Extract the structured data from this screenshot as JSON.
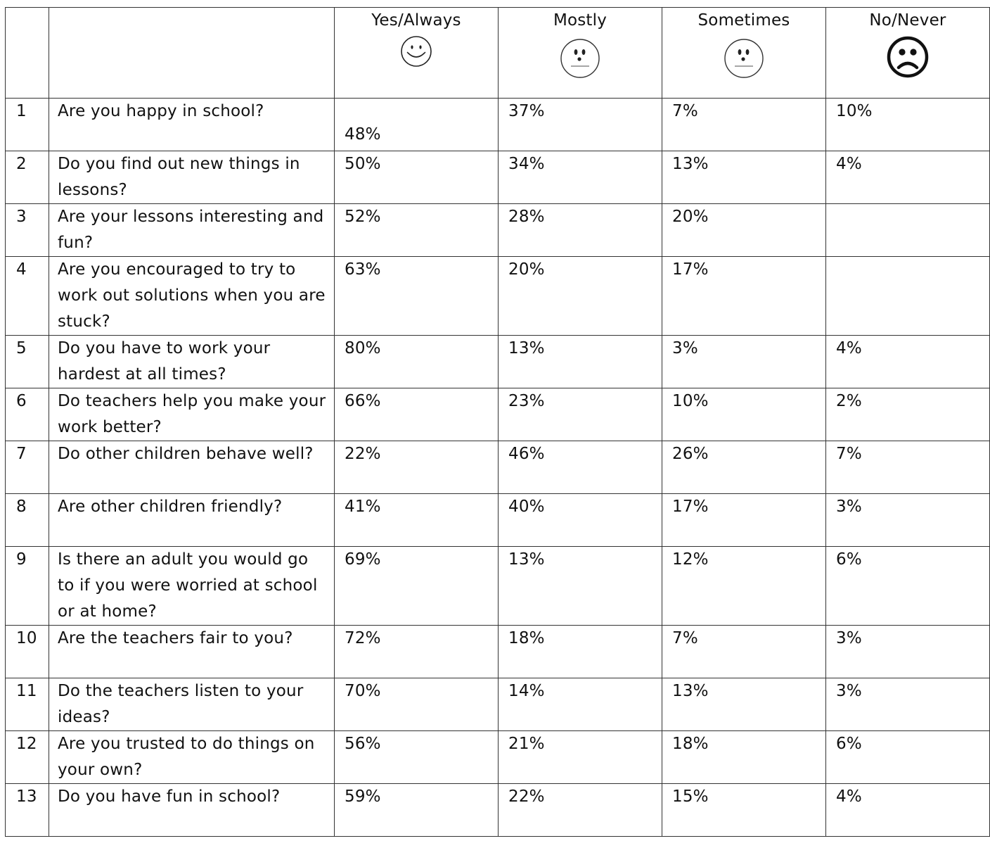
{
  "columns": {
    "yes_always": {
      "label": "Yes/Always",
      "icon": "smiley-face-icon"
    },
    "mostly": {
      "label": "Mostly",
      "icon": "neutral-face-icon"
    },
    "sometimes": {
      "label": "Sometimes",
      "icon": "neutral-face-icon"
    },
    "no_never": {
      "label": "No/Never",
      "icon": "sad-face-icon"
    }
  },
  "rows": [
    {
      "num": "1",
      "question": "Are you happy in school?",
      "yes": "48%",
      "mostly": "37%",
      "sometimes": "7%",
      "never": "10%"
    },
    {
      "num": "2",
      "question": "Do you find out new things in lessons?",
      "yes": "50%",
      "mostly": "34%",
      "sometimes": "13%",
      "never": "4%"
    },
    {
      "num": "3",
      "question": "Are your lessons interesting and fun?",
      "yes": "52%",
      "mostly": "28%",
      "sometimes": "20%",
      "never": ""
    },
    {
      "num": "4",
      "question": "Are you encouraged to try to work out solutions when you are stuck?",
      "yes": "63%",
      "mostly": "20%",
      "sometimes": "17%",
      "never": ""
    },
    {
      "num": "5",
      "question": "Do you have to work your hardest at all times?",
      "yes": "80%",
      "mostly": "13%",
      "sometimes": "3%",
      "never": "4%"
    },
    {
      "num": "6",
      "question": "Do teachers help you make your work better?",
      "yes": "66%",
      "mostly": "23%",
      "sometimes": "10%",
      "never": "2%"
    },
    {
      "num": "7",
      "question": "Do other children behave well?",
      "yes": "22%",
      "mostly": "46%",
      "sometimes": "26%",
      "never": "7%"
    },
    {
      "num": "8",
      "question": "Are other children friendly?",
      "yes": "41%",
      "mostly": "40%",
      "sometimes": "17%",
      "never": "3%"
    },
    {
      "num": "9",
      "question": "Is there an adult you would go to if you were worried at school or at home?",
      "yes": "69%",
      "mostly": "13%",
      "sometimes": "12%",
      "never": "6%"
    },
    {
      "num": "10",
      "question": "Are the teachers fair to you?",
      "yes": "72%",
      "mostly": "18%",
      "sometimes": "7%",
      "never": "3%"
    },
    {
      "num": "11",
      "question": "Do the teachers listen to your ideas?",
      "yes": "70%",
      "mostly": "14%",
      "sometimes": "13%",
      "never": "3%"
    },
    {
      "num": "12",
      "question": "Are you trusted to do things on your own?",
      "yes": "56%",
      "mostly": "21%",
      "sometimes": "18%",
      "never": "6%"
    },
    {
      "num": "13",
      "question": "Do you have fun in school?",
      "yes": "59%",
      "mostly": "22%",
      "sometimes": "15%",
      "never": "4%"
    }
  ]
}
